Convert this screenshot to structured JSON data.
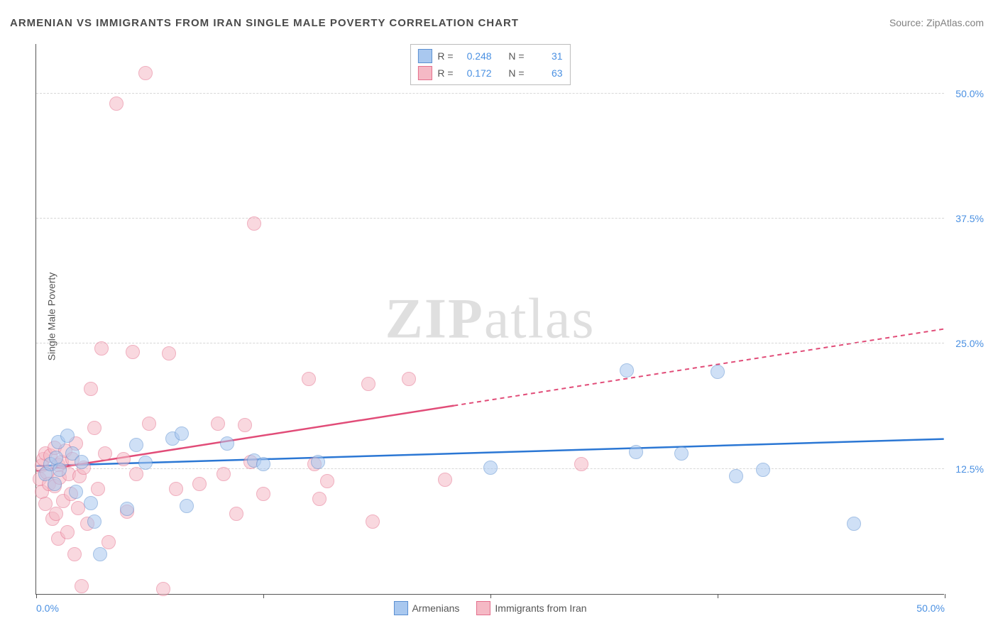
{
  "title": "ARMENIAN VS IMMIGRANTS FROM IRAN SINGLE MALE POVERTY CORRELATION CHART",
  "source": "ZipAtlas.com",
  "watermark": "ZIPatlas",
  "chart": {
    "type": "scatter",
    "ylabel": "Single Male Poverty",
    "xlim": [
      0,
      50
    ],
    "ylim": [
      0,
      55
    ],
    "xticks": [
      0,
      12.5,
      25,
      37.5,
      50
    ],
    "xtick_labels": [
      "0.0%",
      "",
      "",
      "",
      "50.0%"
    ],
    "yticks": [
      12.5,
      25,
      37.5,
      50
    ],
    "ytick_labels": [
      "12.5%",
      "25.0%",
      "37.5%",
      "50.0%"
    ],
    "grid_color": "#d7d7d7",
    "background_color": "#ffffff",
    "axis_color": "#555555",
    "tick_label_color": "#4a90e2",
    "marker_radius": 10,
    "marker_opacity": 0.55,
    "series": [
      {
        "name": "Armenians",
        "color_fill": "#a9c8ef",
        "color_stroke": "#5b8fd1",
        "line_color": "#2b77d4",
        "R": "0.248",
        "N": "31",
        "regression": {
          "x1": 0,
          "y1": 12.8,
          "x2": 50,
          "y2": 15.5,
          "solid_until_x": 50
        },
        "points": [
          [
            0.5,
            12.0
          ],
          [
            0.8,
            13.0
          ],
          [
            1.0,
            11.0
          ],
          [
            1.1,
            13.6
          ],
          [
            1.2,
            15.2
          ],
          [
            1.3,
            12.4
          ],
          [
            1.7,
            15.8
          ],
          [
            2.0,
            14.0
          ],
          [
            2.2,
            10.2
          ],
          [
            2.5,
            13.2
          ],
          [
            3.0,
            9.1
          ],
          [
            3.2,
            7.2
          ],
          [
            3.5,
            4.0
          ],
          [
            5.0,
            8.5
          ],
          [
            5.5,
            14.9
          ],
          [
            6.0,
            13.1
          ],
          [
            7.5,
            15.5
          ],
          [
            8.0,
            16.0
          ],
          [
            8.3,
            8.8
          ],
          [
            10.5,
            15.0
          ],
          [
            12.0,
            13.3
          ],
          [
            12.5,
            13.0
          ],
          [
            15.5,
            13.2
          ],
          [
            25.0,
            12.6
          ],
          [
            32.5,
            22.3
          ],
          [
            33.0,
            14.2
          ],
          [
            35.5,
            14.0
          ],
          [
            37.5,
            22.2
          ],
          [
            38.5,
            11.8
          ],
          [
            40.0,
            12.4
          ],
          [
            45.0,
            7.0
          ]
        ]
      },
      {
        "name": "Immigrants from Iran",
        "color_fill": "#f5b9c5",
        "color_stroke": "#e46f8c",
        "line_color": "#e14c78",
        "R": "0.172",
        "N": "63",
        "regression": {
          "x1": 0,
          "y1": 12.3,
          "x2": 50,
          "y2": 26.5,
          "solid_until_x": 23
        },
        "points": [
          [
            0.2,
            11.5
          ],
          [
            0.3,
            12.8
          ],
          [
            0.3,
            10.2
          ],
          [
            0.4,
            13.5
          ],
          [
            0.5,
            9.0
          ],
          [
            0.5,
            14.0
          ],
          [
            0.6,
            12.1
          ],
          [
            0.7,
            11.0
          ],
          [
            0.8,
            13.8
          ],
          [
            0.9,
            7.5
          ],
          [
            1.0,
            10.8
          ],
          [
            1.0,
            14.6
          ],
          [
            1.1,
            8.0
          ],
          [
            1.2,
            12.9
          ],
          [
            1.2,
            5.5
          ],
          [
            1.3,
            11.6
          ],
          [
            1.4,
            13.2
          ],
          [
            1.5,
            9.3
          ],
          [
            1.6,
            14.3
          ],
          [
            1.7,
            6.2
          ],
          [
            1.8,
            12.0
          ],
          [
            1.9,
            10.0
          ],
          [
            2.0,
            13.5
          ],
          [
            2.1,
            4.0
          ],
          [
            2.2,
            15.0
          ],
          [
            2.3,
            8.6
          ],
          [
            2.4,
            11.8
          ],
          [
            2.5,
            0.8
          ],
          [
            2.6,
            12.6
          ],
          [
            2.8,
            7.0
          ],
          [
            3.0,
            20.5
          ],
          [
            3.2,
            16.6
          ],
          [
            3.4,
            10.5
          ],
          [
            3.6,
            24.5
          ],
          [
            3.8,
            14.0
          ],
          [
            4.0,
            5.2
          ],
          [
            4.4,
            49.0
          ],
          [
            4.8,
            13.5
          ],
          [
            5.0,
            8.2
          ],
          [
            5.3,
            24.2
          ],
          [
            5.5,
            12.0
          ],
          [
            6.0,
            52.0
          ],
          [
            6.2,
            17.0
          ],
          [
            7.0,
            0.5
          ],
          [
            7.3,
            24.0
          ],
          [
            7.7,
            10.5
          ],
          [
            9.0,
            11.0
          ],
          [
            10.0,
            17.0
          ],
          [
            10.3,
            12.0
          ],
          [
            11.0,
            8.0
          ],
          [
            11.5,
            16.9
          ],
          [
            11.8,
            13.2
          ],
          [
            12.0,
            37.0
          ],
          [
            12.5,
            10.0
          ],
          [
            15.0,
            21.5
          ],
          [
            15.3,
            13.0
          ],
          [
            15.6,
            9.5
          ],
          [
            16.0,
            11.3
          ],
          [
            18.3,
            21.0
          ],
          [
            18.5,
            7.2
          ],
          [
            20.5,
            21.5
          ],
          [
            22.5,
            11.4
          ],
          [
            30.0,
            13.0
          ]
        ]
      }
    ]
  },
  "legend_labels": {
    "R": "R =",
    "N": "N ="
  }
}
